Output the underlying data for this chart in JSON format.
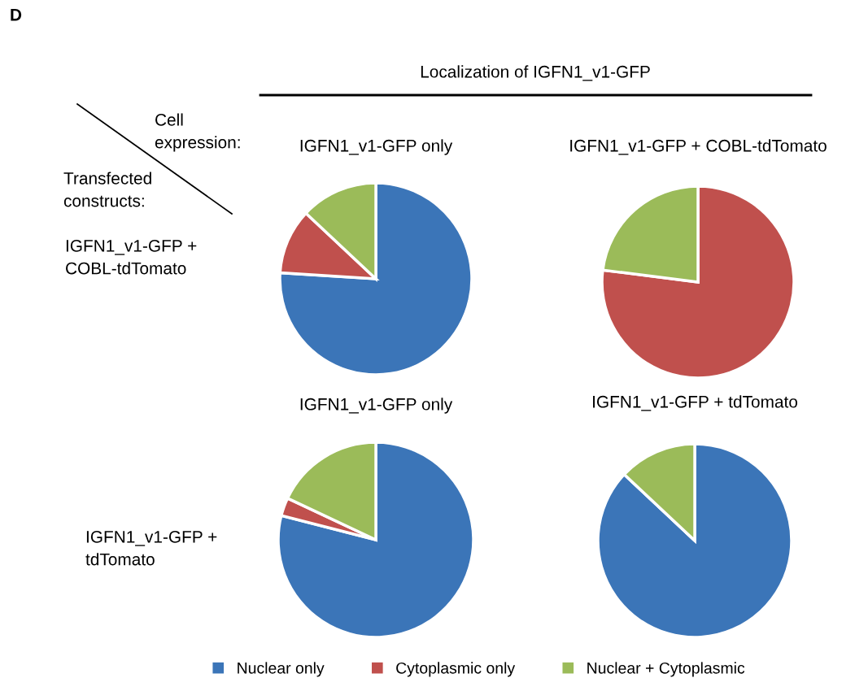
{
  "chart_data": [
    {
      "type": "pie",
      "title": "IGFN1_v1-GFP only",
      "categories": [
        "Nuclear only",
        "Cytoplasmic only",
        "Nuclear + Cytoplasmic"
      ],
      "values": [
        76,
        11,
        13
      ],
      "colors": [
        "#3b75b8",
        "#c0504d",
        "#9bbb59"
      ],
      "legend": "bottom",
      "annotations": [
        "D",
        "Localization of IGFN1_v1-GFP",
        "Cell\nexpression:",
        "Transfected\nconstructs:",
        "IGFN1_v1-GFP +\nCOBL-tdTomato",
        "IGFN1_v1-GFP +\ntdTomato"
      ]
    },
    {
      "type": "pie",
      "title": "IGFN1_v1-GFP + COBL-tdTomato",
      "categories": [
        null,
        null,
        null
      ],
      "values": [
        0,
        77,
        23
      ],
      "colors": [
        "#3b75b8",
        "#c0504d",
        "#9bbb59"
      ]
    },
    {
      "type": "pie",
      "title": "IGFN1_v1-GFP only",
      "categories": [
        null,
        null,
        null
      ],
      "values": [
        79,
        3,
        18
      ],
      "colors": [
        "#3b75b8",
        "#c0504d",
        "#9bbb59"
      ]
    },
    {
      "type": "pie",
      "title": "IGFN1_v1-GFP + tdTomato",
      "categories": [
        null,
        null,
        null
      ],
      "values": [
        87,
        0,
        13
      ],
      "colors": [
        "#3b75b8",
        "#c0504d",
        "#9bbb59"
      ]
    }
  ]
}
